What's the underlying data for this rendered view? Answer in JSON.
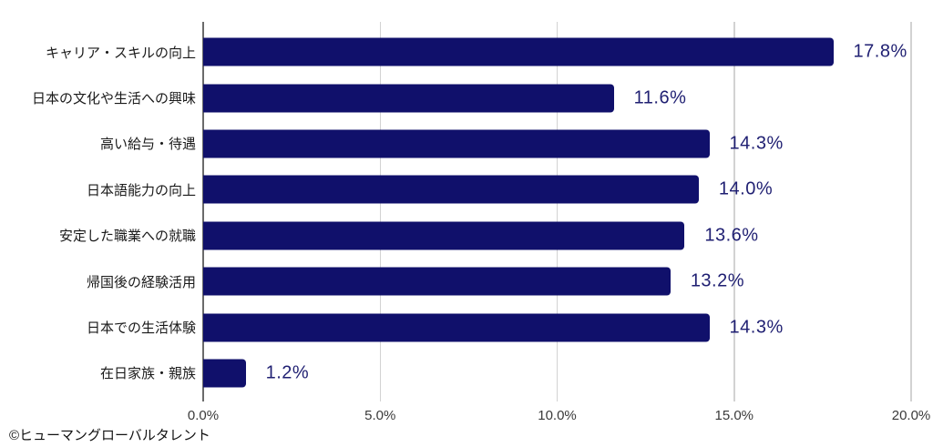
{
  "chart_data": {
    "type": "bar",
    "orientation": "horizontal",
    "title": "",
    "xlabel": "",
    "ylabel": "",
    "categories": [
      "キャリア・スキルの向上",
      "日本の文化や生活への興味",
      "高い給与・待遇",
      "日本語能力の向上",
      "安定した職業への就職",
      "帰国後の経験活用",
      "日本での生活体験",
      "在日家族・親族"
    ],
    "values": [
      17.8,
      11.6,
      14.3,
      14.0,
      13.6,
      13.2,
      14.3,
      1.2
    ],
    "value_labels": [
      "17.8%",
      "11.6%",
      "14.3%",
      "14.0%",
      "13.6%",
      "13.2%",
      "14.3%",
      "1.2%"
    ],
    "xlim": [
      0,
      20
    ],
    "x_ticks": [
      0,
      5,
      10,
      15,
      20
    ],
    "x_tick_labels": [
      "0.0%",
      "5.0%",
      "10.0%",
      "15.0%",
      "20.0%"
    ],
    "grid": "vertical-gridlines-on",
    "legend_position": "none"
  },
  "footer": {
    "credit": "©ヒューマングローバルタレント"
  },
  "colors": {
    "bar": "#10106b",
    "value_label": "#1f1f72",
    "category_label": "#1a1a1a",
    "tick_label": "#3a3a3a",
    "gridline": "#d2d2d2",
    "axis_line": "#6b6b6b",
    "background": "#ffffff"
  }
}
